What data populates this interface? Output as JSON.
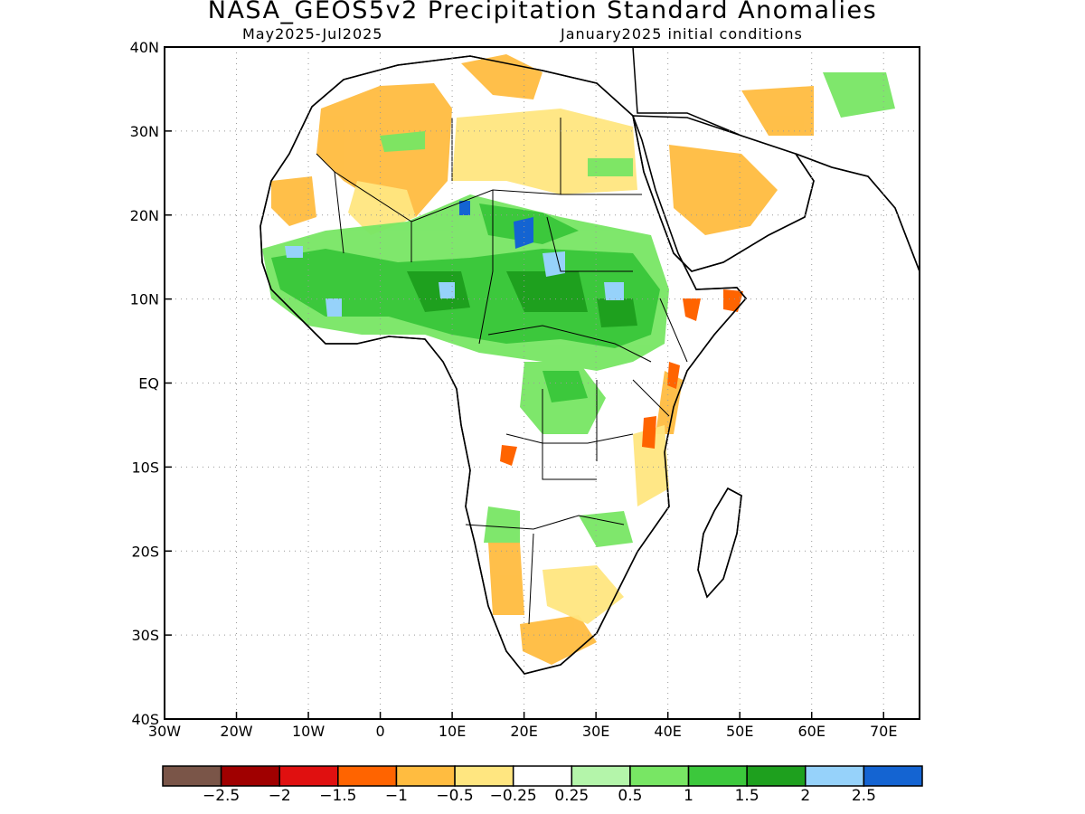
{
  "title": "NASA_GEOS5v2 Precipitation Standard Anomalies",
  "subtitle_left": "May2025-Jul2025",
  "subtitle_right": "January2025 initial conditions",
  "map": {
    "region": "Africa and Middle East",
    "lon_range": [
      -30,
      75
    ],
    "lat_range": [
      -40,
      40
    ],
    "x_ticks": [
      "30W",
      "20W",
      "10W",
      "0",
      "10E",
      "20E",
      "30E",
      "40E",
      "50E",
      "60E",
      "70E"
    ],
    "y_ticks": [
      "40N",
      "30N",
      "20N",
      "10N",
      "EQ",
      "10S",
      "20S",
      "30S",
      "40S"
    ],
    "grid": true
  },
  "colorbar": {
    "labels": [
      "-2.5",
      "-2",
      "-1.5",
      "-1",
      "-0.5",
      "-0.25",
      "0.25",
      "0.5",
      "1",
      "1.5",
      "2",
      "2.5"
    ],
    "colors": [
      "#7a5548",
      "#a00000",
      "#e01010",
      "#ff6400",
      "#ffbc40",
      "#ffe680",
      "#ffffff",
      "#b4f5aa",
      "#78e664",
      "#3cc83c",
      "#1ea01e",
      "#96d2fa",
      "#1464d2"
    ]
  }
}
